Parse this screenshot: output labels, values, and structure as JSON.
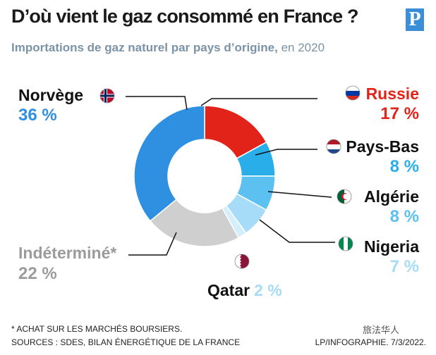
{
  "header": {
    "title": "D’où vient le gaz consommé en France ?",
    "subtitle_bold": "Importations de gaz naturel par pays d’origine,",
    "subtitle_rest": " en 2020",
    "logo_letter": "P"
  },
  "footer": {
    "note": "* ACHAT SUR LES MARCHÉS BOURSIERS.",
    "sources": "SOURCES : SDES, BILAN ÉNERGÉTIQUE DE LA FRANCE",
    "credit": "LP/INFOGRAPHIE. 7/3/2022.",
    "watermark": "旅法华人"
  },
  "chart_data": {
    "type": "pie",
    "title": "D’où vient le gaz consommé en France ?",
    "unit": "%",
    "slices": [
      {
        "label": "Russie",
        "value": 17,
        "display": "17 %",
        "color": "#e2231a",
        "flag": "russia-flag-icon"
      },
      {
        "label": "Pays-Bas",
        "value": 8,
        "display": "8 %",
        "color": "#29aee9",
        "flag": "netherlands-flag-icon"
      },
      {
        "label": "Algérie",
        "value": 8,
        "display": "8 %",
        "color": "#5cc0f0",
        "flag": "algeria-flag-icon"
      },
      {
        "label": "Nigeria",
        "value": 7,
        "display": "7 %",
        "color": "#a6dcf7",
        "flag": "nigeria-flag-icon"
      },
      {
        "label": "Qatar",
        "value": 2,
        "display": "2 %",
        "color": "#d4eefb",
        "flag": "qatar-flag-icon"
      },
      {
        "label": "Indéterminé*",
        "value": 22,
        "display": "22 %",
        "color": "#cfcfcf",
        "flag": ""
      },
      {
        "label": "Norvège",
        "value": 36,
        "display": "36 %",
        "color": "#2f8fe0",
        "flag": "norway-flag-icon"
      }
    ]
  }
}
